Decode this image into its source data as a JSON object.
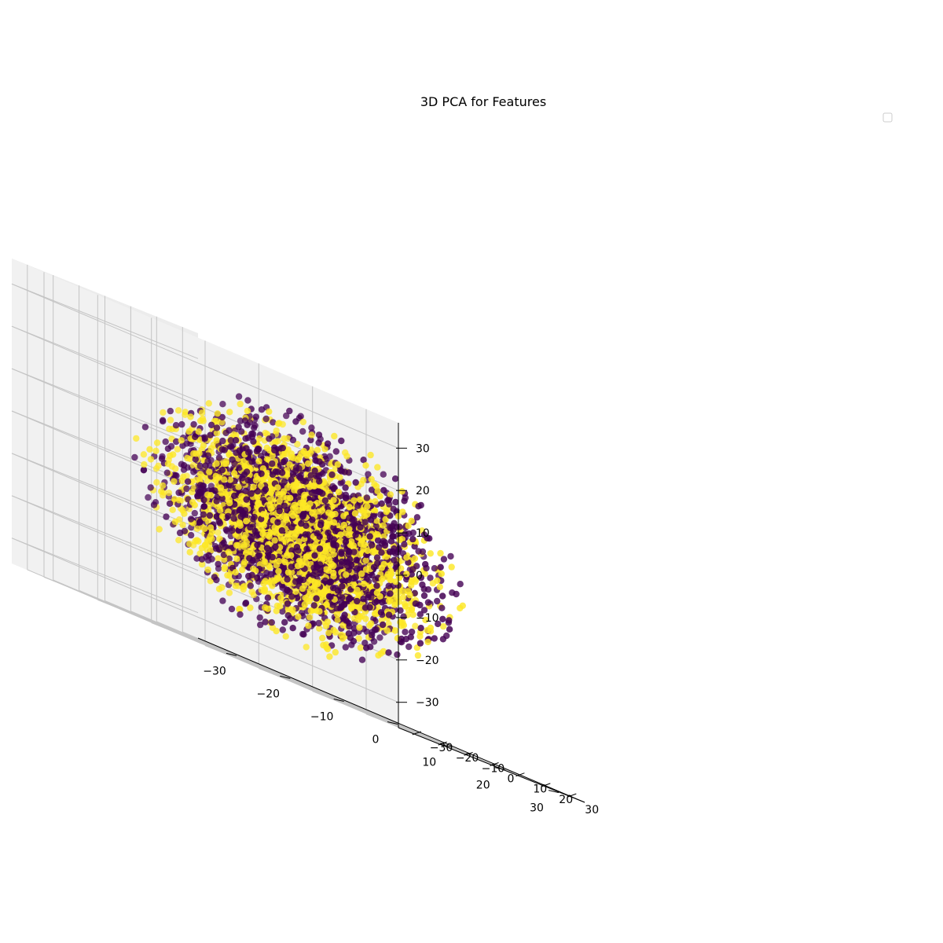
{
  "chart_data": {
    "type": "scatter",
    "projection": "3d",
    "title": "3D PCA for Features",
    "xlabel": "",
    "ylabel": "",
    "zlabel": "",
    "xlim": [
      -36,
      36
    ],
    "ylim": [
      -36,
      36
    ],
    "zlim": [
      -36,
      36
    ],
    "x_ticks": [
      -30,
      -20,
      -10,
      0,
      10,
      20,
      30
    ],
    "y_ticks": [
      -30,
      -20,
      -10,
      0,
      10,
      20,
      30
    ],
    "z_ticks": [
      -30,
      -20,
      -10,
      0,
      10,
      20,
      30
    ],
    "x_tick_labels": [
      "−30",
      "−20",
      "−10",
      "0",
      "10",
      "20",
      "30"
    ],
    "y_tick_labels": [
      "−30",
      "−20",
      "−10",
      "0",
      "10",
      "20",
      "30"
    ],
    "z_tick_labels": [
      "−30",
      "−20",
      "−10",
      "0",
      "10",
      "20",
      "30"
    ],
    "grid": true,
    "legend": {
      "placement": "upper right",
      "entries": []
    },
    "series": [
      {
        "class_index": 0,
        "color": "#440154",
        "distribution": "roughly spherical cloud centered at the origin",
        "approx_center": [
          0,
          0,
          0
        ],
        "approx_radius": 25
      },
      {
        "class_index": 1,
        "color": "#fde725",
        "distribution": "roughly spherical cloud centered at the origin",
        "approx_center": [
          0,
          0,
          0
        ],
        "approx_radius": 25
      }
    ],
    "point_count_shown": 4000,
    "marker_alpha_range": [
      0.55,
      1.0
    ]
  }
}
